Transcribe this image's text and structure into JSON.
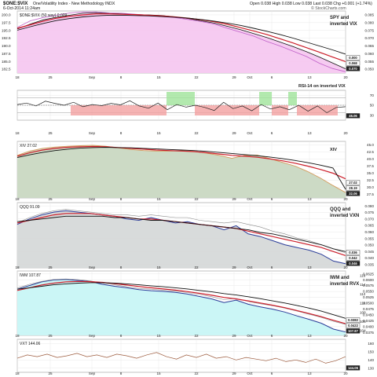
{
  "header": {
    "symbol": "$ONE:$VIX",
    "description": "One/Volatility Index - New Methodology INDX",
    "date": "6-Oct-2014 11:24am",
    "open_label": "Open",
    "open_value": "0.038",
    "high_label": "High",
    "high_value": "0.038",
    "low_label": "Low",
    "low_value": "0.038",
    "last_label": "Last",
    "last_value": "0.038",
    "chg_label": "Chg",
    "chg_value": "+0.001 (+1.74%)",
    "watermark": "© StockCharts.com"
  },
  "colors": {
    "pink_fill": "#f5c8f0",
    "green_fill": "#c9d8c2",
    "gray_fill": "#d6d9d9",
    "cyan_fill": "#c8f5f5",
    "ma_red": "#cc1f2b",
    "ma_black": "#111111",
    "price_line": "#151515",
    "pink_overlay": "#c060c8",
    "orange_overlay": "#d49a5a",
    "blue_overlay": "#2a3c98",
    "rsi_green_band": "#9fe39a",
    "rsi_red_band": "#f2a0a0",
    "brown_line": "#9c5a3c"
  },
  "x_axis": {
    "labels": [
      "18",
      "25",
      "Sep",
      "8",
      "15",
      "22",
      "29",
      "Oct",
      "6",
      "13",
      "20"
    ]
  },
  "chart_data": [
    {
      "type": "line",
      "title": "SPY and inverted VIX",
      "legend": "$ONE:$VIX (50 way) 0.009",
      "y_ticks": [
        "0.085",
        "0.080",
        "0.075",
        "0.070",
        "0.065",
        "0.060",
        "0.055",
        "0.050"
      ],
      "y_ticks_left": [
        "200.0",
        "197.5",
        "195.0",
        "192.5",
        "190.0",
        "187.5",
        "185.0",
        "182.5"
      ],
      "ylim": [
        182.5,
        201.5
      ],
      "current_labels": [
        "0.070",
        "0.068",
        "0.000"
      ],
      "series": [
        {
          "role": "price",
          "values": [
            196.0,
            197.5,
            198.8,
            199.6,
            200.2,
            200.8,
            201.0,
            200.8,
            200.6,
            200.4,
            200.3,
            200.1,
            199.7,
            199.2,
            198.5,
            197.8,
            196.8,
            195.8,
            194.6,
            193.4,
            192.0,
            190.6,
            189.1,
            187.4,
            185.6,
            183.8
          ]
        },
        {
          "role": "overlay",
          "values": [
            196.5,
            198.5,
            199.5,
            200.2,
            200.9,
            201.2,
            201.2,
            200.9,
            200.8,
            200.5,
            200.2,
            199.8,
            199.5,
            198.9,
            198.3,
            197.5,
            196.2,
            195.0,
            193.8,
            192.2,
            190.8,
            189.2,
            187.6,
            185.5,
            183.9,
            182.9
          ]
        },
        {
          "role": "ma-short",
          "values": [
            196.2,
            197.3,
            198.4,
            199.3,
            199.9,
            200.3,
            200.6,
            200.6,
            200.5,
            200.4,
            200.2,
            200.0,
            199.7,
            199.3,
            198.8,
            198.2,
            197.4,
            196.4,
            195.4,
            194.3,
            193.0,
            191.7,
            190.3,
            188.9,
            187.4,
            186.0
          ]
        },
        {
          "role": "ma-long",
          "values": [
            195.6,
            196.7,
            197.7,
            198.6,
            199.2,
            199.7,
            200.0,
            200.2,
            200.2,
            200.1,
            200.0,
            199.8,
            199.6,
            199.3,
            198.9,
            198.4,
            197.8,
            197.1,
            196.2,
            195.3,
            194.3,
            193.2,
            192.0,
            190.8,
            189.6,
            188.3
          ]
        }
      ]
    },
    {
      "type": "line",
      "title": "RSI-14 on inverted VIX",
      "y_ticks": [
        "70",
        "50",
        "30"
      ],
      "ylim": [
        10,
        90
      ],
      "current_labels": [
        "46.06"
      ],
      "series": [
        {
          "role": "rsi",
          "values": [
            52,
            56,
            48,
            61,
            55,
            50,
            58,
            46,
            52,
            49,
            55,
            51,
            62,
            48,
            42,
            56,
            38,
            52,
            45,
            50,
            44,
            36,
            58,
            41,
            48,
            35,
            52,
            40,
            46,
            38,
            50,
            34,
            48,
            30,
            44,
            46
          ]
        }
      ]
    },
    {
      "type": "line",
      "title": "XIV",
      "legend": "XIV 27.02",
      "y_ticks": [
        "45.0",
        "42.5",
        "40.0",
        "37.5",
        "35.0",
        "32.5",
        "30.0",
        "27.5"
      ],
      "ylim": [
        25.0,
        46.0
      ],
      "current_labels": [
        "32.06",
        "28.19",
        "27.02"
      ],
      "series": [
        {
          "role": "price",
          "values": [
            40.8,
            42.4,
            43.4,
            43.9,
            44.2,
            44.4,
            44.5,
            44.2,
            43.6,
            43.0,
            42.6,
            42.4,
            42.4,
            42.5,
            42.3,
            41.6,
            40.8,
            39.7,
            40.8,
            40.9,
            39.6,
            38.2,
            36.8,
            34.8,
            32.4,
            29.6,
            27.0
          ]
        },
        {
          "role": "ma-short",
          "values": [
            40.5,
            41.8,
            42.8,
            43.4,
            43.8,
            44.0,
            44.1,
            44.0,
            43.7,
            43.4,
            43.1,
            42.8,
            42.6,
            42.4,
            42.2,
            41.8,
            41.3,
            40.8,
            40.5,
            40.1,
            39.5,
            38.8,
            37.9,
            36.8,
            35.6,
            34.2,
            32.1
          ]
        },
        {
          "role": "ma-long",
          "values": [
            40.0,
            41.0,
            41.9,
            42.6,
            43.1,
            43.5,
            43.7,
            43.8,
            43.7,
            43.6,
            43.4,
            43.2,
            43.0,
            42.8,
            42.6,
            42.3,
            41.9,
            41.5,
            41.1,
            40.7,
            40.2,
            39.6,
            38.9,
            38.1,
            37.2,
            36.1,
            28.2
          ]
        }
      ]
    },
    {
      "type": "line",
      "title": "QQQ and inverted VXN",
      "legend": "QQQ 91.09",
      "y_ticks": [
        "0.080",
        "0.075",
        "0.070",
        "0.065",
        "0.060",
        "0.055",
        "0.050",
        "0.045",
        "0.040",
        "0.035"
      ],
      "ylim": [
        0.033,
        0.081
      ],
      "current_labels": [
        "0.046",
        "0.042",
        "0.036"
      ],
      "series": [
        {
          "role": "inverted",
          "values": [
            0.065,
            0.069,
            0.072,
            0.074,
            0.075,
            0.074,
            0.073,
            0.072,
            0.071,
            0.069,
            0.068,
            0.07,
            0.068,
            0.066,
            0.067,
            0.065,
            0.064,
            0.061,
            0.064,
            0.058,
            0.056,
            0.053,
            0.05,
            0.048,
            0.046,
            0.043,
            0.038,
            0.036
          ]
        },
        {
          "role": "overlay",
          "values": [
            0.066,
            0.07,
            0.073,
            0.075,
            0.076,
            0.075,
            0.074,
            0.073,
            0.072,
            0.072,
            0.071,
            0.072,
            0.071,
            0.07,
            0.07,
            0.068,
            0.067,
            0.066,
            0.067,
            0.065,
            0.063,
            0.06,
            0.058,
            0.055,
            0.053,
            0.05,
            0.047,
            0.044
          ]
        },
        {
          "role": "ma-short",
          "values": [
            0.066,
            0.068,
            0.07,
            0.072,
            0.073,
            0.073,
            0.073,
            0.072,
            0.071,
            0.07,
            0.069,
            0.069,
            0.068,
            0.067,
            0.066,
            0.065,
            0.064,
            0.063,
            0.062,
            0.06,
            0.058,
            0.056,
            0.054,
            0.052,
            0.05,
            0.048,
            0.045,
            0.042
          ]
        },
        {
          "role": "ma-long",
          "values": [
            0.067,
            0.068,
            0.069,
            0.07,
            0.071,
            0.071,
            0.071,
            0.071,
            0.07,
            0.07,
            0.069,
            0.068,
            0.068,
            0.067,
            0.066,
            0.065,
            0.064,
            0.063,
            0.062,
            0.061,
            0.059,
            0.058,
            0.056,
            0.054,
            0.052,
            0.05,
            0.047,
            0.045
          ]
        }
      ]
    },
    {
      "type": "line",
      "title": "IWM and inverted RVX",
      "legend": "IWM 107.87",
      "y_ticks": [
        "0.0625",
        "0.0600",
        "0.0575",
        "0.0550",
        "0.0525",
        "0.0500",
        "0.0475",
        "0.0450",
        "0.0425",
        "0.0400",
        "0.0375"
      ],
      "y_ticks_right": [
        "116",
        "114",
        "112",
        "110",
        "108",
        "106",
        "104"
      ],
      "ylim": [
        0.037,
        0.0635
      ],
      "current_labels": [
        "107.87",
        "0.0422",
        "0.0382"
      ],
      "series": [
        {
          "role": "inverted",
          "values": [
            0.056,
            0.0575,
            0.059,
            0.0598,
            0.06,
            0.0596,
            0.0592,
            0.058,
            0.0572,
            0.0566,
            0.0558,
            0.0554,
            0.0551,
            0.0547,
            0.054,
            0.053,
            0.052,
            0.0505,
            0.0515,
            0.0498,
            0.0487,
            0.0478,
            0.0466,
            0.045,
            0.0436,
            0.042,
            0.0396,
            0.0384
          ]
        },
        {
          "role": "overlay",
          "values": [
            0.0565,
            0.058,
            0.0592,
            0.06,
            0.0602,
            0.0599,
            0.0594,
            0.0585,
            0.0578,
            0.057,
            0.0563,
            0.056,
            0.0556,
            0.0552,
            0.0546,
            0.0538,
            0.0529,
            0.0517,
            0.0522,
            0.051,
            0.05,
            0.0492,
            0.0482,
            0.047,
            0.0457,
            0.0444,
            0.0428,
            0.0415
          ]
        },
        {
          "role": "ma-short",
          "values": [
            0.0555,
            0.0566,
            0.0577,
            0.0585,
            0.059,
            0.0592,
            0.0591,
            0.0588,
            0.0583,
            0.0577,
            0.0571,
            0.0566,
            0.0561,
            0.0556,
            0.055,
            0.0543,
            0.0535,
            0.0526,
            0.052,
            0.0512,
            0.0503,
            0.0494,
            0.0484,
            0.0472,
            0.046,
            0.0447,
            0.0432,
            0.0418
          ]
        },
        {
          "role": "ma-long",
          "values": [
            0.056,
            0.0566,
            0.0572,
            0.0578,
            0.0582,
            0.0585,
            0.0587,
            0.0587,
            0.0585,
            0.0582,
            0.0578,
            0.0574,
            0.057,
            0.0566,
            0.0561,
            0.0555,
            0.0549,
            0.0542,
            0.0536,
            0.0529,
            0.0521,
            0.0512,
            0.0503,
            0.0493,
            0.0482,
            0.047,
            0.0455,
            0.044
          ]
        }
      ]
    },
    {
      "type": "line",
      "title": "",
      "legend": "VXT 144.06",
      "y_ticks": [
        "160",
        "150",
        "140",
        "130"
      ],
      "ylim": [
        125,
        165
      ],
      "current_labels": [
        "144.06"
      ],
      "series": [
        {
          "role": "price",
          "values": [
            142,
            146,
            144,
            147,
            143,
            145,
            148,
            144,
            146,
            143,
            147,
            145,
            142,
            146,
            149,
            144,
            141,
            146,
            143,
            147,
            142,
            144,
            140,
            143,
            141,
            139,
            142,
            138,
            140,
            137,
            141,
            136,
            139,
            144
          ]
        }
      ]
    }
  ]
}
